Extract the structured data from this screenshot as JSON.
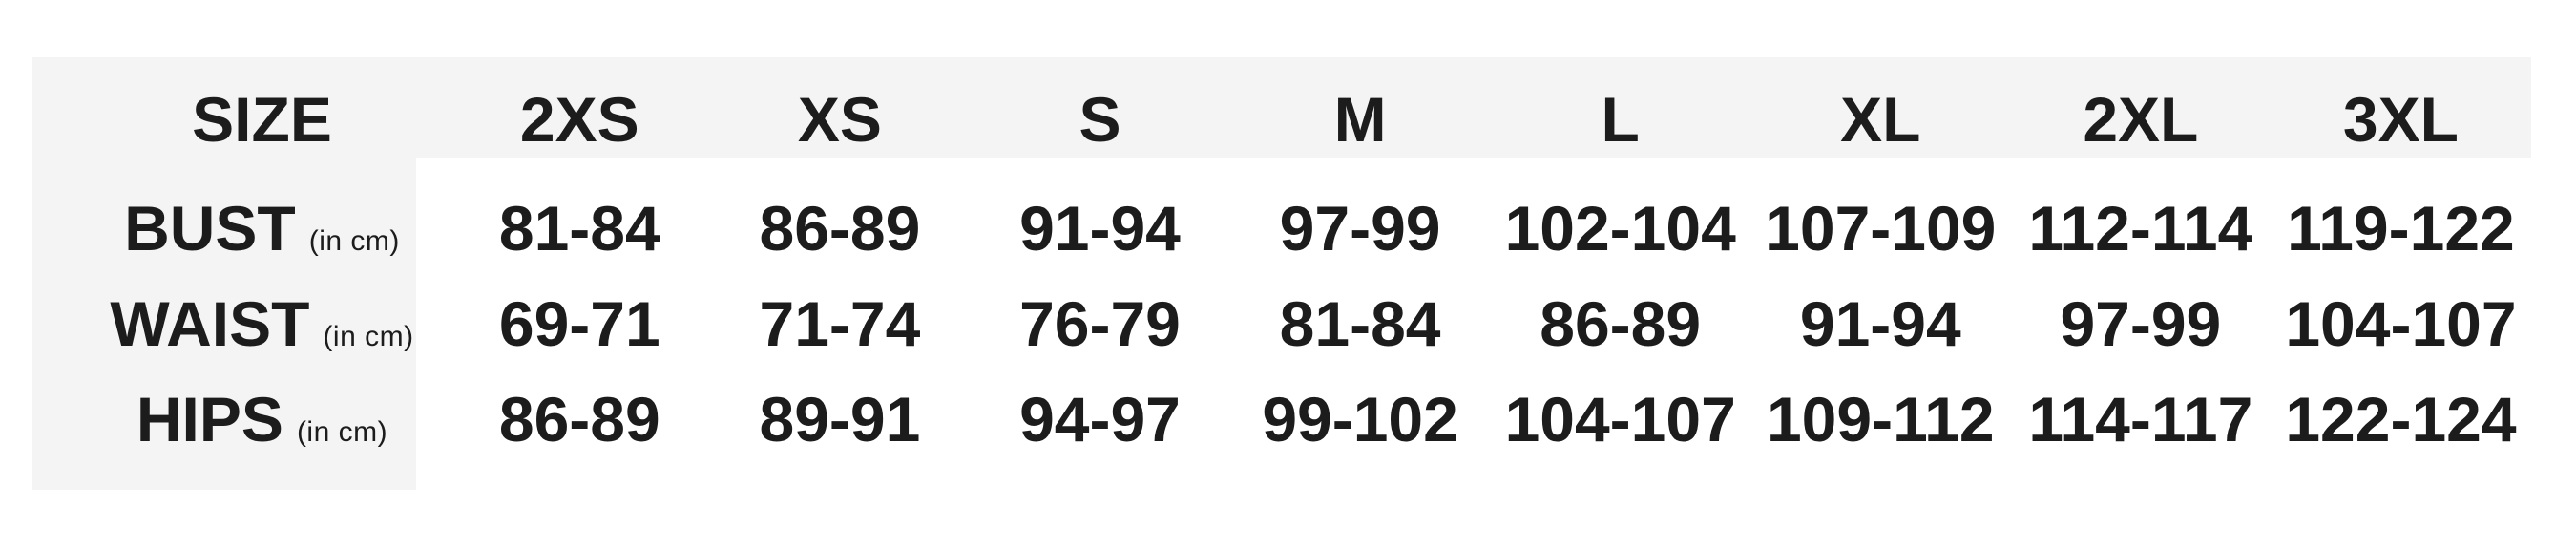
{
  "chart_data": {
    "type": "table",
    "corner_label": "SIZE",
    "columns": [
      "2XS",
      "XS",
      "S",
      "M",
      "L",
      "XL",
      "2XL",
      "3XL"
    ],
    "rows": [
      {
        "label": "BUST",
        "unit": "(in cm)",
        "values": [
          "81-84",
          "86-89",
          "91-94",
          "97-99",
          "102-104",
          "107-109",
          "112-114",
          "119-122"
        ]
      },
      {
        "label": "WAIST",
        "unit": "(in cm)",
        "values": [
          "69-71",
          "71-74",
          "76-79",
          "81-84",
          "86-89",
          "91-94",
          "97-99",
          "104-107"
        ]
      },
      {
        "label": "HIPS",
        "unit": "(in cm)",
        "values": [
          "86-89",
          "89-91",
          "94-97",
          "99-102",
          "104-107",
          "109-112",
          "114-117",
          "122-124"
        ]
      }
    ],
    "layout_hints": {
      "legend": "none",
      "grid_lines": "off",
      "header_band_shape": "L-shaped gray band over header row and label column"
    }
  },
  "colors": {
    "band_background": "#f4f4f4",
    "text": "#1c1c1c",
    "page_background": "#ffffff"
  }
}
